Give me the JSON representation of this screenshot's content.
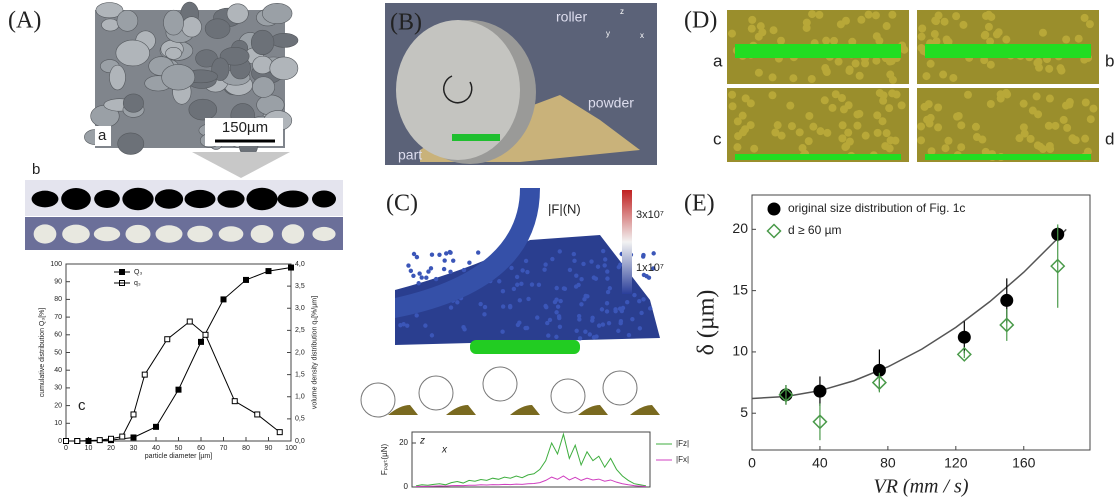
{
  "panels": {
    "A": "(A)",
    "B": "(B)",
    "C": "(C)",
    "D": "(D)",
    "E": "(E)"
  },
  "panel_a": {
    "sem_label": "a",
    "scale_bar": "150µm",
    "shapes_label": "b",
    "chart_label": "c"
  },
  "panel_b": {
    "roller": "roller",
    "powder": "powder",
    "part": "part",
    "axes": [
      "z",
      "y",
      "x"
    ]
  },
  "panel_c": {
    "colorbar_title": "|F|(N)",
    "colorbar_ticks": [
      "3x10⁷",
      "1x10⁷"
    ],
    "axes": [
      "z",
      "x"
    ]
  },
  "panel_d": {
    "labels": [
      "a",
      "b",
      "c",
      "d"
    ]
  },
  "chart_data": [
    {
      "type": "line",
      "xlabel": "particle diameter [µm]",
      "ylabel": "cumulative distribution Q₃[%]",
      "y2label": "volume density distribution q₃[%/µm]",
      "xlim": [
        0,
        100
      ],
      "xticks": [
        0,
        10,
        20,
        30,
        40,
        50,
        60,
        70,
        80,
        90,
        100
      ],
      "ylim": [
        0,
        100
      ],
      "yticks": [
        0,
        10,
        20,
        30,
        40,
        50,
        60,
        70,
        80,
        90,
        100
      ],
      "y2lim": [
        0,
        4
      ],
      "y2ticks": [
        {
          "value": 0,
          "label": "0,0"
        },
        {
          "value": 0.5,
          "label": "0,5"
        },
        {
          "value": 1,
          "label": "1,0"
        },
        {
          "value": 1.5,
          "label": "1,5"
        },
        {
          "value": 2,
          "label": "2,0"
        },
        {
          "value": 2.5,
          "label": "2,5"
        },
        {
          "value": 3,
          "label": "3,0"
        },
        {
          "value": 3.5,
          "label": "3,5"
        },
        {
          "value": 4,
          "label": "4,0"
        }
      ],
      "legend": "upper left",
      "series": [
        {
          "name": "Q₃",
          "color": "#000000",
          "marker": "square-filled",
          "x": [
            0,
            5,
            10,
            20,
            30,
            40,
            50,
            60,
            70,
            80,
            90,
            100
          ],
          "values": [
            0,
            0,
            0,
            0.5,
            2,
            8,
            29,
            56,
            80,
            91,
            96,
            98
          ]
        },
        {
          "name": "q₃",
          "color": "#000000",
          "marker": "square-open",
          "axis": "y2",
          "x": [
            0,
            5,
            15,
            20,
            25,
            30,
            35,
            45,
            55,
            62,
            75,
            85,
            95
          ],
          "values": [
            0,
            0,
            0.02,
            0.05,
            0.1,
            0.6,
            1.5,
            2.3,
            2.7,
            2.4,
            0.9,
            0.6,
            0.2
          ]
        }
      ]
    },
    {
      "type": "scatter",
      "xlabel": "VR (mm / s)",
      "ylabel": "δ (µm)",
      "xlim": [
        0,
        199
      ],
      "xticks": [
        0,
        40,
        80,
        120,
        160
      ],
      "ylim": [
        2,
        22.8
      ],
      "yticks": [
        5,
        10,
        15,
        20
      ],
      "legend": "upper left",
      "x": [
        20,
        40,
        75,
        125,
        150,
        180
      ],
      "series": [
        {
          "name": "original size distribution of Fig. 1c",
          "color": "#000000",
          "marker": "circle",
          "values": [
            6.5,
            6.8,
            8.5,
            11.2,
            14.2,
            19.6
          ],
          "errors": [
            0.8,
            1.2,
            1.7,
            1.3,
            1.8,
            0.6
          ]
        },
        {
          "name": "d  ≥  60 µm",
          "color": "#4a9a4a",
          "marker": "diamond-open",
          "values": [
            6.5,
            4.3,
            7.5,
            9.8,
            12.2,
            17
          ],
          "errors": [
            0.8,
            1.5,
            0.8,
            0.3,
            1.3,
            3.4
          ]
        }
      ],
      "fit": {
        "color": "#555555",
        "x": [
          0,
          20,
          40,
          60,
          80,
          100,
          120,
          140,
          160,
          180,
          185
        ],
        "values": [
          6.2,
          6.36,
          6.84,
          7.65,
          8.78,
          10.23,
          12.0,
          14.1,
          16.5,
          19.26,
          20.0
        ]
      }
    },
    {
      "type": "line",
      "ylabel": "Fₚₐᵣₜ(µN)",
      "ylim": [
        0,
        25
      ],
      "yticks": [
        0,
        20
      ],
      "legend": "outside right",
      "series": [
        {
          "name": "|Fz|",
          "color": "#3fae3f",
          "values": [
            0.5,
            1,
            0.8,
            1.2,
            1.5,
            1,
            2,
            2.5,
            1.8,
            3,
            2.6,
            3.4,
            3,
            4,
            3.5,
            4.5,
            4,
            5,
            4.2,
            5.5,
            6,
            8,
            12,
            20,
            15,
            24,
            13,
            19,
            10,
            16,
            12,
            14,
            9,
            13,
            8,
            5,
            3,
            1.5,
            1,
            0.5
          ]
        },
        {
          "name": "|Fx|",
          "color": "#d040c0",
          "values": [
            0.2,
            0.3,
            0.3,
            0.4,
            0.5,
            0.4,
            0.6,
            0.7,
            0.6,
            0.8,
            0.8,
            1,
            0.9,
            1.1,
            1,
            1.2,
            1.1,
            1.3,
            1.2,
            1.5,
            1.6,
            2,
            3,
            4.5,
            3.5,
            5,
            3.2,
            4.4,
            3,
            4,
            3.2,
            3.6,
            2.6,
            3.2,
            2.2,
            1.5,
            1,
            0.6,
            0.4,
            0.2
          ]
        }
      ]
    }
  ]
}
